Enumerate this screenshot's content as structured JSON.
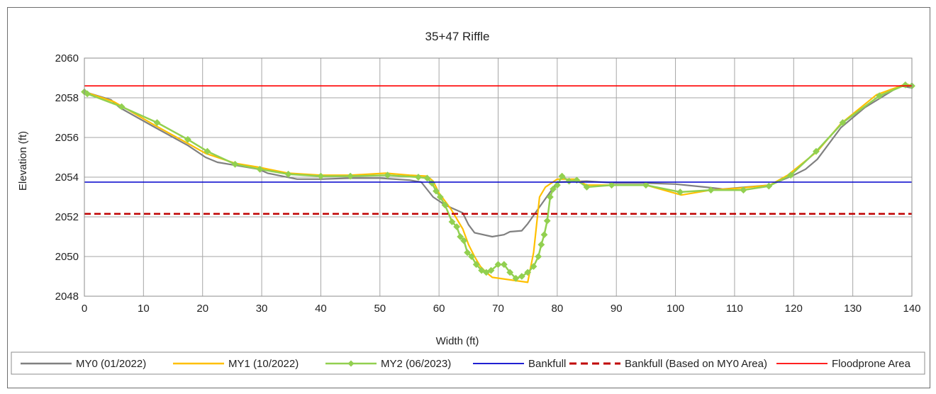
{
  "chart_data": {
    "type": "line",
    "title": "35+47 Riffle",
    "xlabel": "Width (ft)",
    "ylabel": "Elevation (ft)",
    "xlim": [
      0,
      140
    ],
    "ylim": [
      2048,
      2060
    ],
    "xticks": [
      0,
      10,
      20,
      30,
      40,
      50,
      60,
      70,
      80,
      90,
      100,
      110,
      120,
      130,
      140
    ],
    "yticks": [
      2048,
      2050,
      2052,
      2054,
      2056,
      2058,
      2060
    ],
    "grid": true,
    "legend_position": "bottom",
    "series": [
      {
        "name": "MY0 (01/2022)",
        "color": "#808080",
        "style": "solid",
        "markers": false,
        "x": [
          0,
          4.5,
          6,
          12,
          17.5,
          20.5,
          22.5,
          25.5,
          29.5,
          31,
          36,
          40,
          45,
          50,
          55,
          57,
          59,
          61,
          64,
          65,
          66,
          69,
          71,
          72,
          74,
          75,
          77,
          80,
          85,
          90,
          95,
          100,
          105,
          108,
          112,
          116,
          120,
          122,
          124,
          128,
          132,
          138,
          140
        ],
        "y": [
          2058.3,
          2057.9,
          2057.5,
          2056.5,
          2055.6,
          2055.0,
          2054.75,
          2054.6,
          2054.4,
          2054.2,
          2053.9,
          2053.9,
          2053.95,
          2053.95,
          2053.85,
          2053.75,
          2053.0,
          2052.6,
          2052.2,
          2051.6,
          2051.2,
          2051.0,
          2051.1,
          2051.25,
          2051.3,
          2051.65,
          2052.5,
          2053.75,
          2053.8,
          2053.7,
          2053.7,
          2053.65,
          2053.5,
          2053.4,
          2053.5,
          2053.6,
          2054.1,
          2054.4,
          2054.9,
          2056.5,
          2057.5,
          2058.6,
          2058.5
        ]
      },
      {
        "name": "MY1 (10/2022)",
        "color": "#ffc000",
        "style": "solid",
        "markers": false,
        "x": [
          0,
          5,
          12,
          17.5,
          20.5,
          25.5,
          29.5,
          34.5,
          40,
          45,
          51,
          55,
          58,
          59,
          60,
          62,
          64,
          65,
          66,
          67,
          68,
          69,
          75,
          76,
          77,
          78,
          80,
          83,
          85,
          90,
          95,
          101,
          106,
          111,
          116,
          119,
          124,
          128,
          134,
          139,
          140
        ],
        "y": [
          2058.3,
          2057.8,
          2056.6,
          2055.7,
          2055.2,
          2054.7,
          2054.5,
          2054.2,
          2054.1,
          2054.1,
          2054.2,
          2054.1,
          2054.05,
          2053.8,
          2053.2,
          2052.4,
          2051.4,
          2050.6,
          2050.0,
          2049.5,
          2049.2,
          2048.95,
          2048.7,
          2050.2,
          2053.0,
          2053.5,
          2053.9,
          2053.9,
          2053.6,
          2053.6,
          2053.6,
          2053.1,
          2053.35,
          2053.45,
          2053.6,
          2054.1,
          2055.3,
          2056.7,
          2058.15,
          2058.7,
          2058.6
        ]
      },
      {
        "name": "MY2 (06/2023)",
        "color": "#92d050",
        "style": "solid",
        "markers": true,
        "x": [
          0,
          0.5,
          6.3,
          12.3,
          17.5,
          20.8,
          25.5,
          29.7,
          34.5,
          40,
          45,
          51.3,
          56.5,
          58,
          58.8,
          59.5,
          60.2,
          61,
          62.2,
          63,
          63.6,
          64.2,
          64.8,
          65.5,
          66.3,
          67.2,
          68,
          68.8,
          70,
          71,
          72,
          73,
          74,
          75,
          76,
          76.8,
          77.3,
          77.8,
          78.3,
          78.8,
          79.3,
          80,
          80.8,
          82,
          83.3,
          85,
          89.2,
          95,
          100.8,
          106,
          111.5,
          115.8,
          119.5,
          123.8,
          128.3,
          134.5,
          138.9,
          140
        ],
        "y": [
          2058.3,
          2058.2,
          2057.55,
          2056.75,
          2055.9,
          2055.3,
          2054.65,
          2054.4,
          2054.15,
          2054.05,
          2054.05,
          2054.1,
          2054.0,
          2053.95,
          2053.7,
          2053.3,
          2053.0,
          2052.6,
          2051.75,
          2051.5,
          2051.0,
          2050.8,
          2050.2,
          2050.0,
          2049.6,
          2049.3,
          2049.2,
          2049.3,
          2049.6,
          2049.6,
          2049.2,
          2048.9,
          2049.0,
          2049.2,
          2049.5,
          2050.0,
          2050.6,
          2051.1,
          2051.8,
          2053.0,
          2053.4,
          2053.6,
          2054.05,
          2053.8,
          2053.85,
          2053.5,
          2053.6,
          2053.6,
          2053.25,
          2053.35,
          2053.35,
          2053.55,
          2054.1,
          2055.3,
          2056.75,
          2058.1,
          2058.65,
          2058.6
        ]
      },
      {
        "name": "Bankfull",
        "color": "#0000cc",
        "style": "solid",
        "markers": false,
        "x": [
          0,
          140
        ],
        "y": [
          2053.75,
          2053.75
        ]
      },
      {
        "name": "Bankfull (Based on MY0 Area)",
        "color": "#c00000",
        "style": "dashed",
        "markers": false,
        "x": [
          0,
          140
        ],
        "y": [
          2052.15,
          2052.15
        ]
      },
      {
        "name": "Floodprone Area",
        "color": "#ff0000",
        "style": "solid",
        "markers": false,
        "x": [
          0,
          140
        ],
        "y": [
          2058.6,
          2058.6
        ]
      }
    ]
  }
}
